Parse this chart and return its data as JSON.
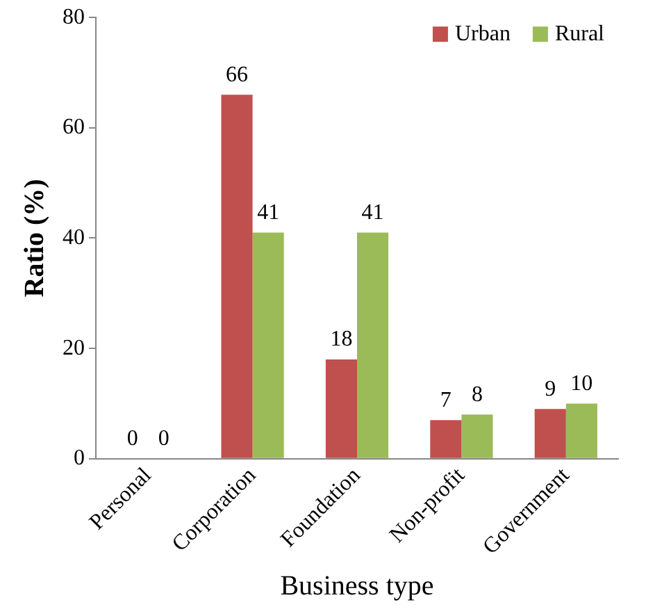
{
  "chart_data": {
    "type": "bar",
    "xlabel": "Business type",
    "ylabel": "Ratio (%)",
    "categories": [
      "Personal",
      "Corporation",
      "Foundation",
      "Non-profit",
      "Government"
    ],
    "series": [
      {
        "name": "Urban",
        "color": "#c0504d",
        "values": [
          0,
          66,
          18,
          7,
          9
        ]
      },
      {
        "name": "Rural",
        "color": "#9bbb59",
        "values": [
          0,
          41,
          41,
          8,
          10
        ]
      }
    ],
    "ylim": [
      0,
      80
    ],
    "yticks": [
      0,
      20,
      40,
      60,
      80
    ],
    "grid": false,
    "legend": "top right",
    "data_labels": true
  }
}
